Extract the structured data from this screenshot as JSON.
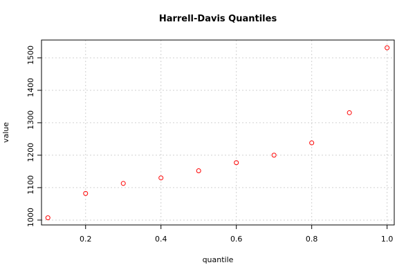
{
  "chart_data": {
    "type": "scatter",
    "title": "Harrell-Davis Quantiles",
    "x_label": "quantile",
    "y_label": "value",
    "x": [
      0.1,
      0.2,
      0.3,
      0.4,
      0.5,
      0.6,
      0.7,
      0.8,
      0.9,
      1.0
    ],
    "series": [
      {
        "color": "#ff0000",
        "values": [
          1007,
          1082,
          1113,
          1130,
          1152,
          1177,
          1200,
          1238,
          1331,
          1531
        ]
      }
    ],
    "xlim": [
      0.083,
      1.019
    ],
    "ylim": [
      985,
      1555
    ],
    "xticks": [
      0.2,
      0.4,
      0.6,
      0.8,
      {
        "value": 1,
        "label": "1.0"
      }
    ],
    "yticks": [
      1000,
      1100,
      1200,
      1300,
      1400,
      1500
    ],
    "grid": true
  }
}
